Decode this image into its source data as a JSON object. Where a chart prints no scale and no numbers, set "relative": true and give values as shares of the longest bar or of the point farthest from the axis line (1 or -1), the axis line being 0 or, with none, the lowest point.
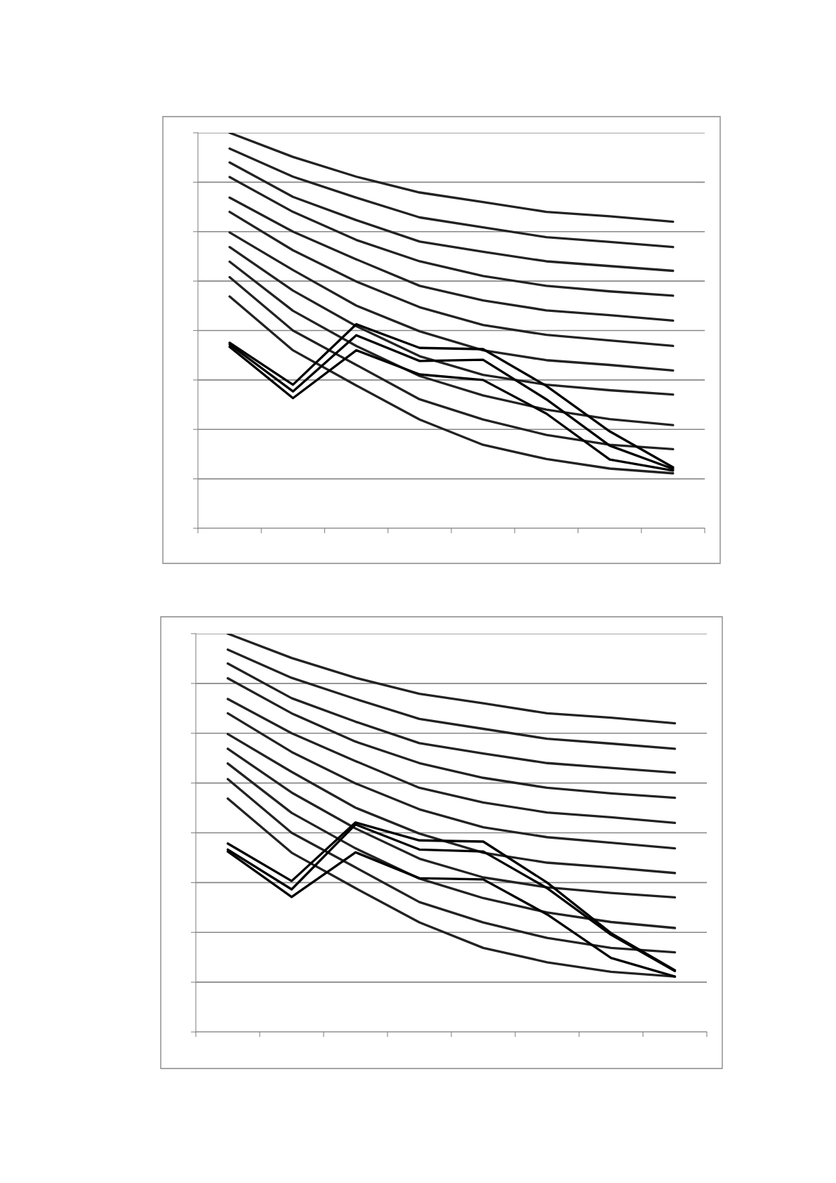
{
  "chart_data": [
    {
      "type": "line",
      "relative": true,
      "grid": "y",
      "categories": [
        null,
        null,
        null,
        null,
        null,
        null,
        null,
        null
      ],
      "series": [
        {
          "color": "#222222",
          "values": [
            1.0,
            0.939,
            0.889,
            0.849,
            0.825,
            0.8,
            0.789,
            0.775
          ]
        },
        {
          "color": "#222222",
          "values": [
            0.96,
            0.889,
            0.836,
            0.786,
            0.761,
            0.736,
            0.724,
            0.711
          ]
        },
        {
          "color": "#222222",
          "values": [
            0.925,
            0.838,
            0.779,
            0.725,
            0.699,
            0.675,
            0.663,
            0.651
          ]
        },
        {
          "color": "#222222",
          "values": [
            0.888,
            0.8,
            0.729,
            0.675,
            0.638,
            0.613,
            0.599,
            0.588
          ]
        },
        {
          "color": "#222222",
          "values": [
            0.836,
            0.75,
            0.68,
            0.613,
            0.576,
            0.551,
            0.539,
            0.525
          ]
        },
        {
          "color": "#222222",
          "values": [
            0.8,
            0.703,
            0.624,
            0.559,
            0.514,
            0.489,
            0.475,
            0.461
          ]
        },
        {
          "color": "#222222",
          "values": [
            0.748,
            0.653,
            0.563,
            0.498,
            0.45,
            0.425,
            0.413,
            0.399
          ]
        },
        {
          "color": "#222222",
          "values": [
            0.711,
            0.601,
            0.511,
            0.435,
            0.388,
            0.363,
            0.349,
            0.338
          ]
        },
        {
          "color": "#222222",
          "values": [
            0.674,
            0.55,
            0.461,
            0.385,
            0.336,
            0.3,
            0.276,
            0.261
          ]
        },
        {
          "color": "#222222",
          "values": [
            0.635,
            0.5,
            0.413,
            0.326,
            0.275,
            0.236,
            0.211,
            0.2
          ]
        },
        {
          "color": "#222222",
          "values": [
            0.586,
            0.45,
            0.361,
            0.275,
            0.211,
            0.175,
            0.151,
            0.139
          ]
        },
        {
          "color": "#000000",
          "values": [
            0.469,
            0.363,
            0.516,
            0.456,
            0.453,
            0.36,
            0.245,
            0.154
          ]
        },
        {
          "color": "#000000",
          "values": [
            0.465,
            0.346,
            0.488,
            0.423,
            0.426,
            0.326,
            0.209,
            0.15
          ]
        },
        {
          "color": "#000000",
          "values": [
            0.459,
            0.329,
            0.45,
            0.389,
            0.375,
            0.29,
            0.174,
            0.146
          ]
        }
      ]
    },
    {
      "type": "line",
      "relative": true,
      "grid": "y",
      "categories": [
        null,
        null,
        null,
        null,
        null,
        null,
        null,
        null
      ],
      "series": [
        {
          "color": "#222222",
          "values": [
            1.0,
            0.939,
            0.889,
            0.849,
            0.825,
            0.8,
            0.789,
            0.775
          ]
        },
        {
          "color": "#222222",
          "values": [
            0.96,
            0.889,
            0.836,
            0.786,
            0.761,
            0.736,
            0.724,
            0.711
          ]
        },
        {
          "color": "#222222",
          "values": [
            0.925,
            0.838,
            0.779,
            0.725,
            0.699,
            0.675,
            0.663,
            0.651
          ]
        },
        {
          "color": "#222222",
          "values": [
            0.888,
            0.8,
            0.729,
            0.675,
            0.638,
            0.613,
            0.599,
            0.588
          ]
        },
        {
          "color": "#222222",
          "values": [
            0.836,
            0.75,
            0.68,
            0.613,
            0.576,
            0.551,
            0.539,
            0.525
          ]
        },
        {
          "color": "#222222",
          "values": [
            0.8,
            0.703,
            0.624,
            0.559,
            0.514,
            0.489,
            0.475,
            0.461
          ]
        },
        {
          "color": "#222222",
          "values": [
            0.748,
            0.653,
            0.563,
            0.498,
            0.45,
            0.425,
            0.413,
            0.399
          ]
        },
        {
          "color": "#222222",
          "values": [
            0.711,
            0.601,
            0.511,
            0.435,
            0.388,
            0.363,
            0.349,
            0.338
          ]
        },
        {
          "color": "#222222",
          "values": [
            0.674,
            0.55,
            0.461,
            0.385,
            0.336,
            0.3,
            0.276,
            0.261
          ]
        },
        {
          "color": "#222222",
          "values": [
            0.635,
            0.5,
            0.413,
            0.326,
            0.275,
            0.236,
            0.211,
            0.2
          ]
        },
        {
          "color": "#222222",
          "values": [
            0.586,
            0.45,
            0.361,
            0.275,
            0.211,
            0.175,
            0.151,
            0.139
          ]
        },
        {
          "color": "#000000",
          "values": [
            0.473,
            0.379,
            0.526,
            0.481,
            0.478,
            0.375,
            0.248,
            0.155
          ]
        },
        {
          "color": "#000000",
          "values": [
            0.458,
            0.358,
            0.521,
            0.458,
            0.453,
            0.361,
            0.244,
            0.153
          ]
        },
        {
          "color": "#000000",
          "values": [
            0.453,
            0.339,
            0.451,
            0.386,
            0.383,
            0.295,
            0.186,
            0.139
          ]
        }
      ]
    }
  ]
}
